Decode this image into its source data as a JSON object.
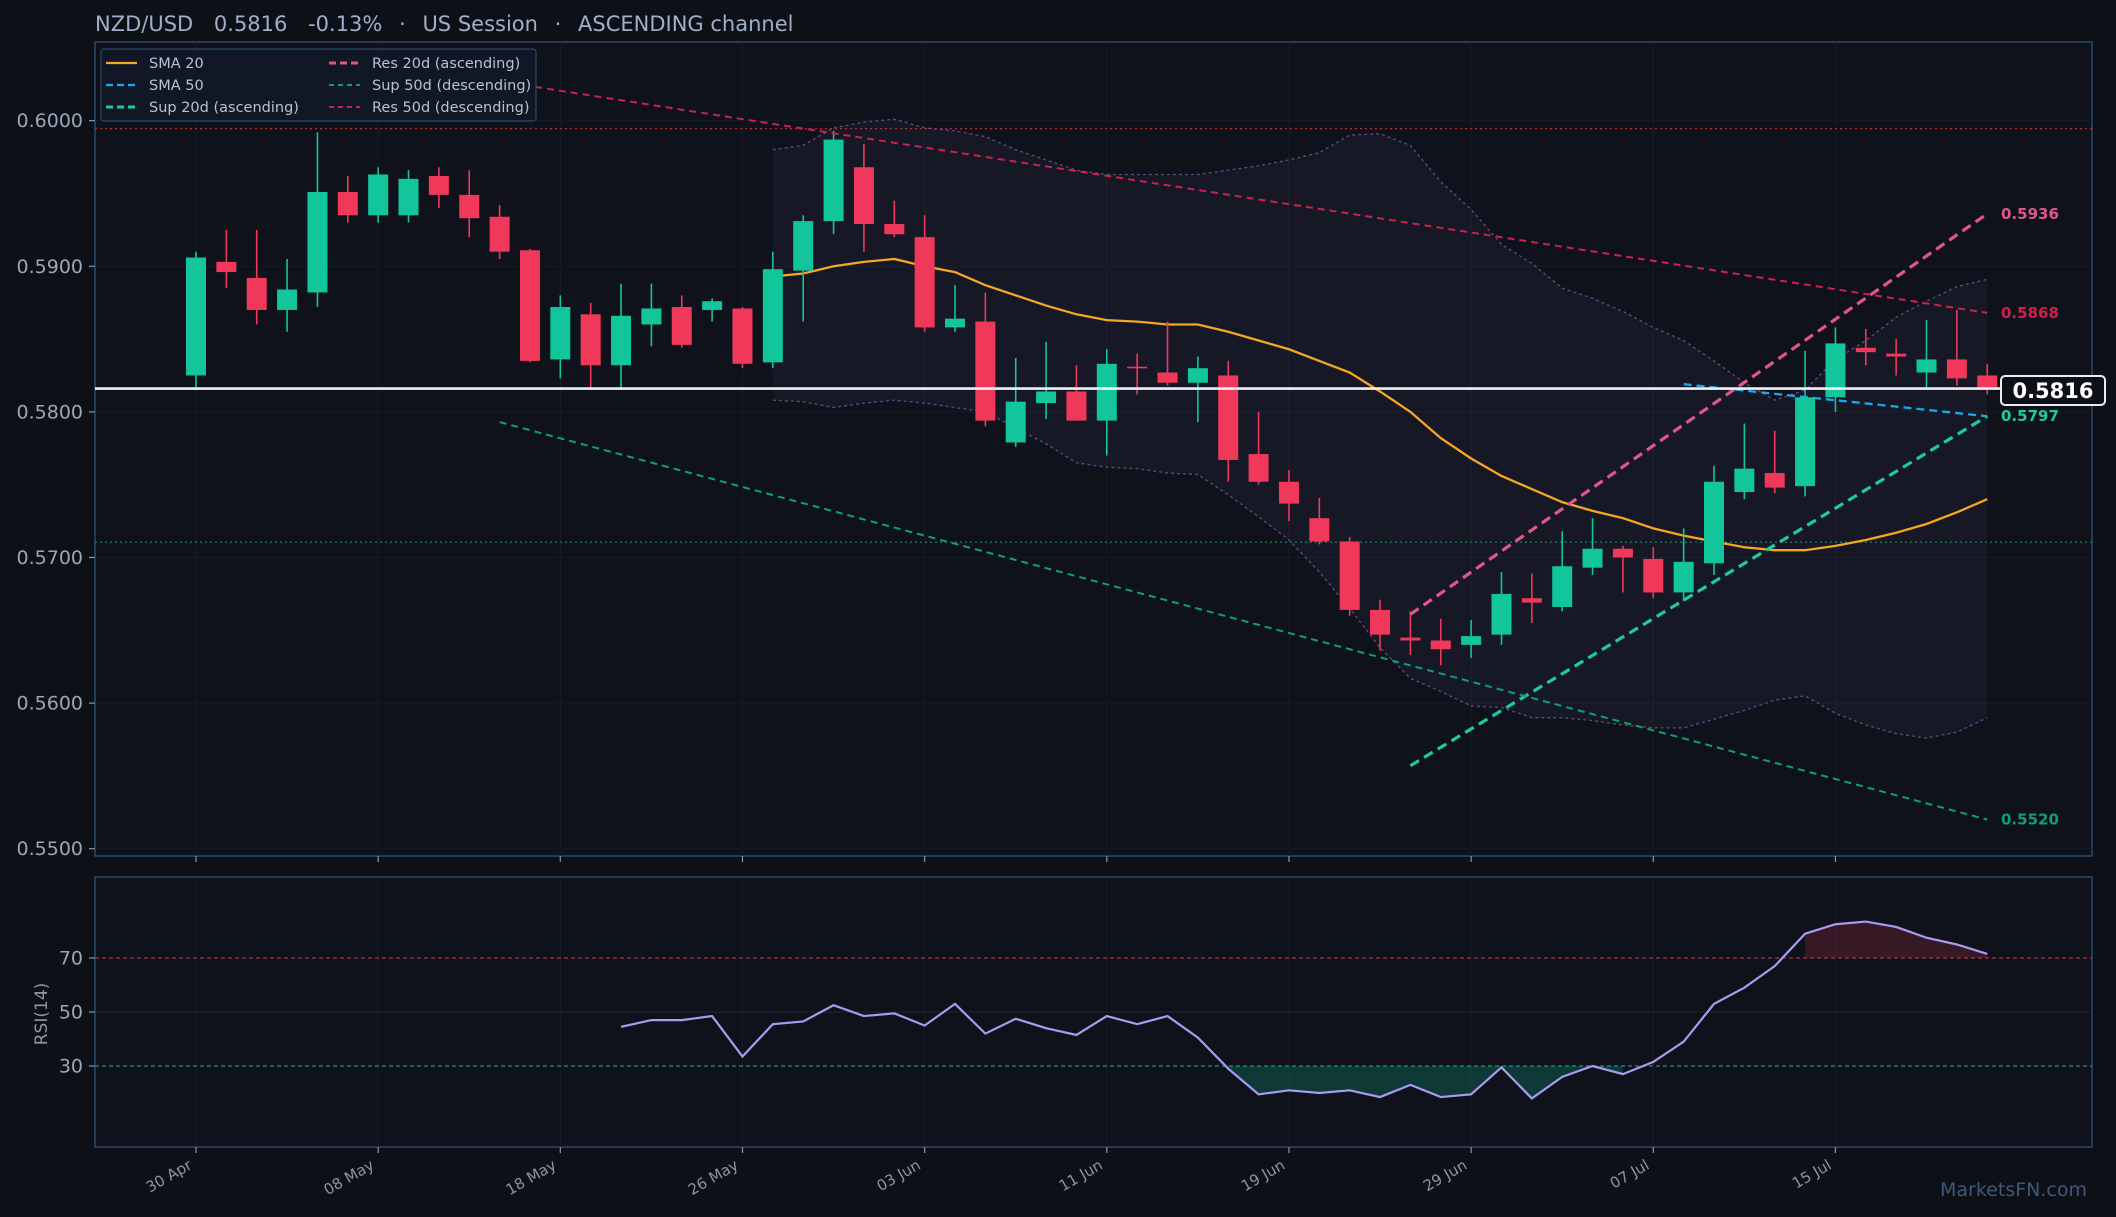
{
  "chart_data": {
    "type": "candlestick",
    "title": {
      "symbol": "NZD/USD",
      "price": "0.5816",
      "change": "-0.13%",
      "session": "US Session",
      "channel": "ASCENDING channel",
      "separator": "·"
    },
    "price_axis": {
      "ylim": [
        0.5495,
        0.6054
      ],
      "ticks": [
        "0.5500",
        "0.5600",
        "0.5700",
        "0.5800",
        "0.5900",
        "0.6000"
      ]
    },
    "x_ticks": [
      {
        "label": "30 Apr",
        "index": 0
      },
      {
        "label": "08 May",
        "index": 6
      },
      {
        "label": "18 May",
        "index": 12
      },
      {
        "label": "26 May",
        "index": 18
      },
      {
        "label": "03 Jun",
        "index": 24
      },
      {
        "label": "11 Jun",
        "index": 30
      },
      {
        "label": "19 Jun",
        "index": 36
      },
      {
        "label": "29 Jun",
        "index": 42
      },
      {
        "label": "07 Jul",
        "index": 48
      },
      {
        "label": "15 Jul",
        "index": 54
      }
    ],
    "candles": [
      [
        0.5825,
        0.591,
        0.5815,
        0.5906
      ],
      [
        0.5903,
        0.5925,
        0.5885,
        0.5896
      ],
      [
        0.5892,
        0.5925,
        0.586,
        0.587
      ],
      [
        0.587,
        0.5905,
        0.5855,
        0.5884
      ],
      [
        0.5882,
        0.5992,
        0.5872,
        0.5951
      ],
      [
        0.5951,
        0.5962,
        0.593,
        0.5935
      ],
      [
        0.5935,
        0.5968,
        0.593,
        0.5963
      ],
      [
        0.5935,
        0.5966,
        0.593,
        0.596
      ],
      [
        0.5962,
        0.5968,
        0.594,
        0.5949
      ],
      [
        0.5949,
        0.5966,
        0.592,
        0.5933
      ],
      [
        0.5934,
        0.5942,
        0.5905,
        0.591
      ],
      [
        0.5911,
        0.5912,
        0.5834,
        0.5835
      ],
      [
        0.5836,
        0.588,
        0.5823,
        0.5872
      ],
      [
        0.5867,
        0.5875,
        0.5815,
        0.5832
      ],
      [
        0.5832,
        0.5888,
        0.5815,
        0.5866
      ],
      [
        0.586,
        0.5888,
        0.5845,
        0.5871
      ],
      [
        0.5872,
        0.588,
        0.5844,
        0.5846
      ],
      [
        0.587,
        0.5878,
        0.5862,
        0.5876
      ],
      [
        0.5871,
        0.5872,
        0.583,
        0.5833
      ],
      [
        0.5834,
        0.591,
        0.583,
        0.5898
      ],
      [
        0.5897,
        0.5935,
        0.5862,
        0.5931
      ],
      [
        0.5931,
        0.5993,
        0.5922,
        0.5987
      ],
      [
        0.5968,
        0.5984,
        0.591,
        0.5929
      ],
      [
        0.5929,
        0.5945,
        0.592,
        0.5922
      ],
      [
        0.592,
        0.5935,
        0.5855,
        0.5858
      ],
      [
        0.5858,
        0.5887,
        0.5855,
        0.5864
      ],
      [
        0.5862,
        0.5882,
        0.579,
        0.5794
      ],
      [
        0.5779,
        0.5837,
        0.5776,
        0.5807
      ],
      [
        0.5806,
        0.5848,
        0.5795,
        0.5814
      ],
      [
        0.5814,
        0.5832,
        0.5794,
        0.5794
      ],
      [
        0.5794,
        0.5843,
        0.577,
        0.5833
      ],
      [
        0.5831,
        0.584,
        0.5812,
        0.583
      ],
      [
        0.5827,
        0.5862,
        0.5818,
        0.582
      ],
      [
        0.582,
        0.5838,
        0.5793,
        0.583
      ],
      [
        0.5825,
        0.5835,
        0.5752,
        0.5767
      ],
      [
        0.5771,
        0.58,
        0.575,
        0.5752
      ],
      [
        0.5752,
        0.576,
        0.5725,
        0.5737
      ],
      [
        0.5727,
        0.5741,
        0.5709,
        0.5711
      ],
      [
        0.5711,
        0.5714,
        0.566,
        0.5664
      ],
      [
        0.5664,
        0.5671,
        0.5636,
        0.5647
      ],
      [
        0.5645,
        0.5663,
        0.5633,
        0.5643
      ],
      [
        0.5643,
        0.5658,
        0.5626,
        0.5637
      ],
      [
        0.564,
        0.5657,
        0.5631,
        0.5646
      ],
      [
        0.5647,
        0.569,
        0.564,
        0.5675
      ],
      [
        0.5672,
        0.5689,
        0.5655,
        0.5669
      ],
      [
        0.5666,
        0.5718,
        0.5663,
        0.5694
      ],
      [
        0.5693,
        0.5727,
        0.5688,
        0.5706
      ],
      [
        0.5706,
        0.5708,
        0.5676,
        0.57
      ],
      [
        0.5699,
        0.5707,
        0.5672,
        0.5676
      ],
      [
        0.5676,
        0.572,
        0.567,
        0.5697
      ],
      [
        0.5696,
        0.5763,
        0.5688,
        0.5752
      ],
      [
        0.5745,
        0.5792,
        0.574,
        0.5761
      ],
      [
        0.5758,
        0.5787,
        0.5744,
        0.5748
      ],
      [
        0.5749,
        0.5842,
        0.5742,
        0.581
      ],
      [
        0.581,
        0.5858,
        0.58,
        0.5847
      ],
      [
        0.5844,
        0.5857,
        0.5832,
        0.5841
      ],
      [
        0.584,
        0.585,
        0.5825,
        0.5838
      ],
      [
        0.5827,
        0.5863,
        0.5817,
        0.5836
      ],
      [
        0.5836,
        0.587,
        0.5818,
        0.5823
      ],
      [
        0.5825,
        0.5833,
        0.5812,
        0.5816
      ]
    ],
    "sma20": {
      "name": "SMA 20",
      "color": "#f5a623",
      "start": 19,
      "values": [
        0.5893,
        0.5895,
        0.59,
        0.5903,
        0.5905,
        0.59,
        0.5896,
        0.5887,
        0.588,
        0.5873,
        0.5867,
        0.5863,
        0.5862,
        0.586,
        0.586,
        0.5855,
        0.5849,
        0.5843,
        0.5835,
        0.5827,
        0.5814,
        0.58,
        0.5782,
        0.5768,
        0.5756,
        0.5747,
        0.5738,
        0.5732,
        0.5727,
        0.572,
        0.5715,
        0.5711,
        0.5707,
        0.5705,
        0.5705,
        0.5708,
        0.5712,
        0.5717,
        0.5723,
        0.5731,
        0.574
      ]
    },
    "sma50": {
      "name": "SMA 50",
      "color": "#1aa7ee",
      "points": [
        [
          49,
          0.5819
        ],
        [
          59,
          0.5797
        ]
      ]
    },
    "bollinger": {
      "start": 19,
      "upper": [
        0.598,
        0.5983,
        0.5995,
        0.5999,
        0.6001,
        0.5995,
        0.5993,
        0.5989,
        0.598,
        0.5973,
        0.5966,
        0.5963,
        0.5963,
        0.5963,
        0.5963,
        0.5966,
        0.5969,
        0.5973,
        0.5978,
        0.599,
        0.5991,
        0.5983,
        0.5958,
        0.5939,
        0.5915,
        0.5902,
        0.5885,
        0.5878,
        0.5869,
        0.5858,
        0.5849,
        0.5835,
        0.582,
        0.5808,
        0.5815,
        0.5836,
        0.5849,
        0.5865,
        0.5876,
        0.5886,
        0.5891
      ],
      "lower": [
        0.5808,
        0.5807,
        0.5803,
        0.5806,
        0.5808,
        0.5806,
        0.5803,
        0.58,
        0.5789,
        0.5778,
        0.5765,
        0.5762,
        0.5761,
        0.5758,
        0.5757,
        0.5743,
        0.5728,
        0.5712,
        0.569,
        0.5665,
        0.5638,
        0.5617,
        0.5608,
        0.5598,
        0.5597,
        0.559,
        0.559,
        0.5588,
        0.5585,
        0.5583,
        0.5583,
        0.5589,
        0.5595,
        0.5602,
        0.5605,
        0.5593,
        0.5585,
        0.5579,
        0.5576,
        0.558,
        0.559
      ]
    },
    "trendlines": [
      {
        "name": "Res 20d (ascending)",
        "color": "#e0568c",
        "from": [
          40,
          0.5661
        ],
        "to": [
          59,
          0.5936
        ],
        "label": "0.5936",
        "style": "dash",
        "width": 3.2
      },
      {
        "name": "Sup 20d (ascending)",
        "color": "#1ecba0",
        "from": [
          40,
          0.5557
        ],
        "to": [
          59,
          0.5797
        ],
        "label": "0.5797",
        "style": "dash",
        "width": 3.2
      },
      {
        "name": "Sup 50d (descending)",
        "color": "#119e72",
        "from": [
          10,
          0.5793
        ],
        "to": [
          59,
          0.552
        ],
        "label": "0.5520",
        "style": "dash",
        "width": 2
      },
      {
        "name": "Res 50d (descending)",
        "color": "#c9224d",
        "from": [
          10,
          0.6027
        ],
        "to": [
          59,
          0.5868
        ],
        "label": "0.5868",
        "style": "dash",
        "width": 2
      }
    ],
    "levels": [
      {
        "value": 0.59945,
        "color": "#b0303a"
      },
      {
        "value": 0.57105,
        "color": "#2b8a52"
      }
    ],
    "current_price": {
      "value": 0.5816,
      "label": "0.5816"
    },
    "legend": {
      "col1": [
        {
          "name": "SMA 20",
          "color": "#f5a623",
          "dash": "none",
          "width": 2.2
        },
        {
          "name": "SMA 50",
          "color": "#1aa7ee",
          "dash": "7 4",
          "width": 2.2
        },
        {
          "name": "Sup 20d (ascending)",
          "color": "#1ecba0",
          "dash": "7 4",
          "width": 3
        }
      ],
      "col2": [
        {
          "name": "Res 20d (ascending)",
          "color": "#e0568c",
          "dash": "7 4",
          "width": 3
        },
        {
          "name": "Sup 50d (descending)",
          "color": "#119e72",
          "dash": "5 4",
          "width": 2
        },
        {
          "name": "Res 50d (descending)",
          "color": "#c9224d",
          "dash": "5 4",
          "width": 2
        }
      ]
    },
    "rsi": {
      "name": "RSI(14)",
      "ylim": [
        0,
        100
      ],
      "ticks": [
        "70",
        "50",
        "30"
      ],
      "start": 14,
      "values": [
        44.5,
        47,
        47,
        48.5,
        33.5,
        45.5,
        46.5,
        52.5,
        48.5,
        49.5,
        45,
        53,
        42,
        47.5,
        44,
        41.5,
        48.5,
        45.5,
        48.5,
        40.5,
        29,
        19.5,
        21,
        20,
        21,
        18.5,
        23,
        18.5,
        19.5,
        29.5,
        18,
        26,
        30,
        27,
        31.5,
        39,
        53,
        59,
        67,
        79,
        82.5,
        83.5,
        81.5,
        77.5,
        75,
        71.5
      ]
    },
    "colors": {
      "up": "#12c59a",
      "down": "#f0385b",
      "background": "#0d1017",
      "panel_border": "#2a4a6b"
    },
    "watermark": "MarketsFN.com"
  }
}
